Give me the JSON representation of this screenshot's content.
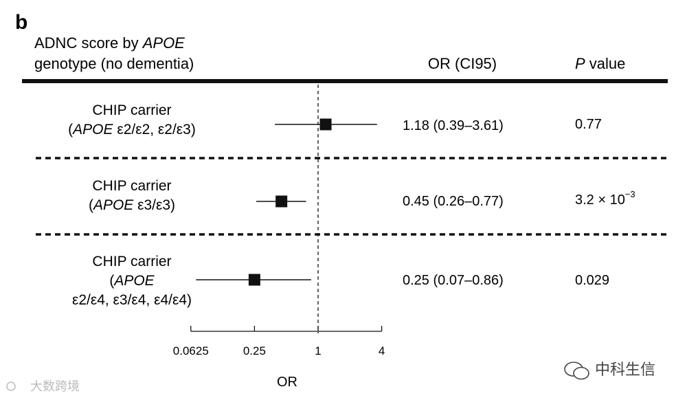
{
  "panel_letter": "b",
  "header": {
    "title_line1_pre": "ADNC score by ",
    "title_line1_ital": "APOE",
    "title_line2": "genotype (no dementia)",
    "or_col": "OR (CI95)",
    "p_col_ital": "P",
    "p_col_rest": " value"
  },
  "rows": [
    {
      "label_line1": "CHIP carrier",
      "label_line2_open": "(",
      "label_line2_ital": "APOE",
      "label_line2_rest": " ε2/ε2, ε2/ε3)",
      "or_text": "1.18 (0.39–3.61)",
      "p_text": "0.77"
    },
    {
      "label_line1": "CHIP carrier",
      "label_line2_open": "(",
      "label_line2_ital": "APOE",
      "label_line2_rest": " ε3/ε3)",
      "or_text": "0.45 (0.26–0.77)",
      "p_base": "3.2 × 10",
      "p_exp": "−3"
    },
    {
      "label_line1": "CHIP carrier",
      "label_line2_open": "(",
      "label_line2_ital": "APOE",
      "label_line3": "ε2/ε4, ε3/ε4, ε4/ε4)",
      "or_text": "0.25 (0.07–0.86)",
      "p_text": "0.029"
    }
  ],
  "chart_data": {
    "type": "forest",
    "x_scale": "log",
    "reference_line": 1,
    "xlabel": "OR",
    "ticks": [
      0.0625,
      0.25,
      1,
      4
    ],
    "tick_labels": [
      "0.0625",
      "0.25",
      "1",
      "4"
    ],
    "series": [
      {
        "label": "CHIP carrier (APOE ε2/ε2, ε2/ε3)",
        "or": 1.18,
        "ci_low": 0.39,
        "ci_high": 3.61,
        "p": "0.77"
      },
      {
        "label": "CHIP carrier (APOE ε3/ε3)",
        "or": 0.45,
        "ci_low": 0.26,
        "ci_high": 0.77,
        "p": "3.2 × 10−3"
      },
      {
        "label": "CHIP carrier (APOE ε2/ε4, ε3/ε4, ε4/ε4)",
        "or": 0.25,
        "ci_low": 0.07,
        "ci_high": 0.86,
        "p": "0.029"
      }
    ]
  },
  "watermarks": {
    "left": "大数跨境",
    "right": "中科生信"
  }
}
